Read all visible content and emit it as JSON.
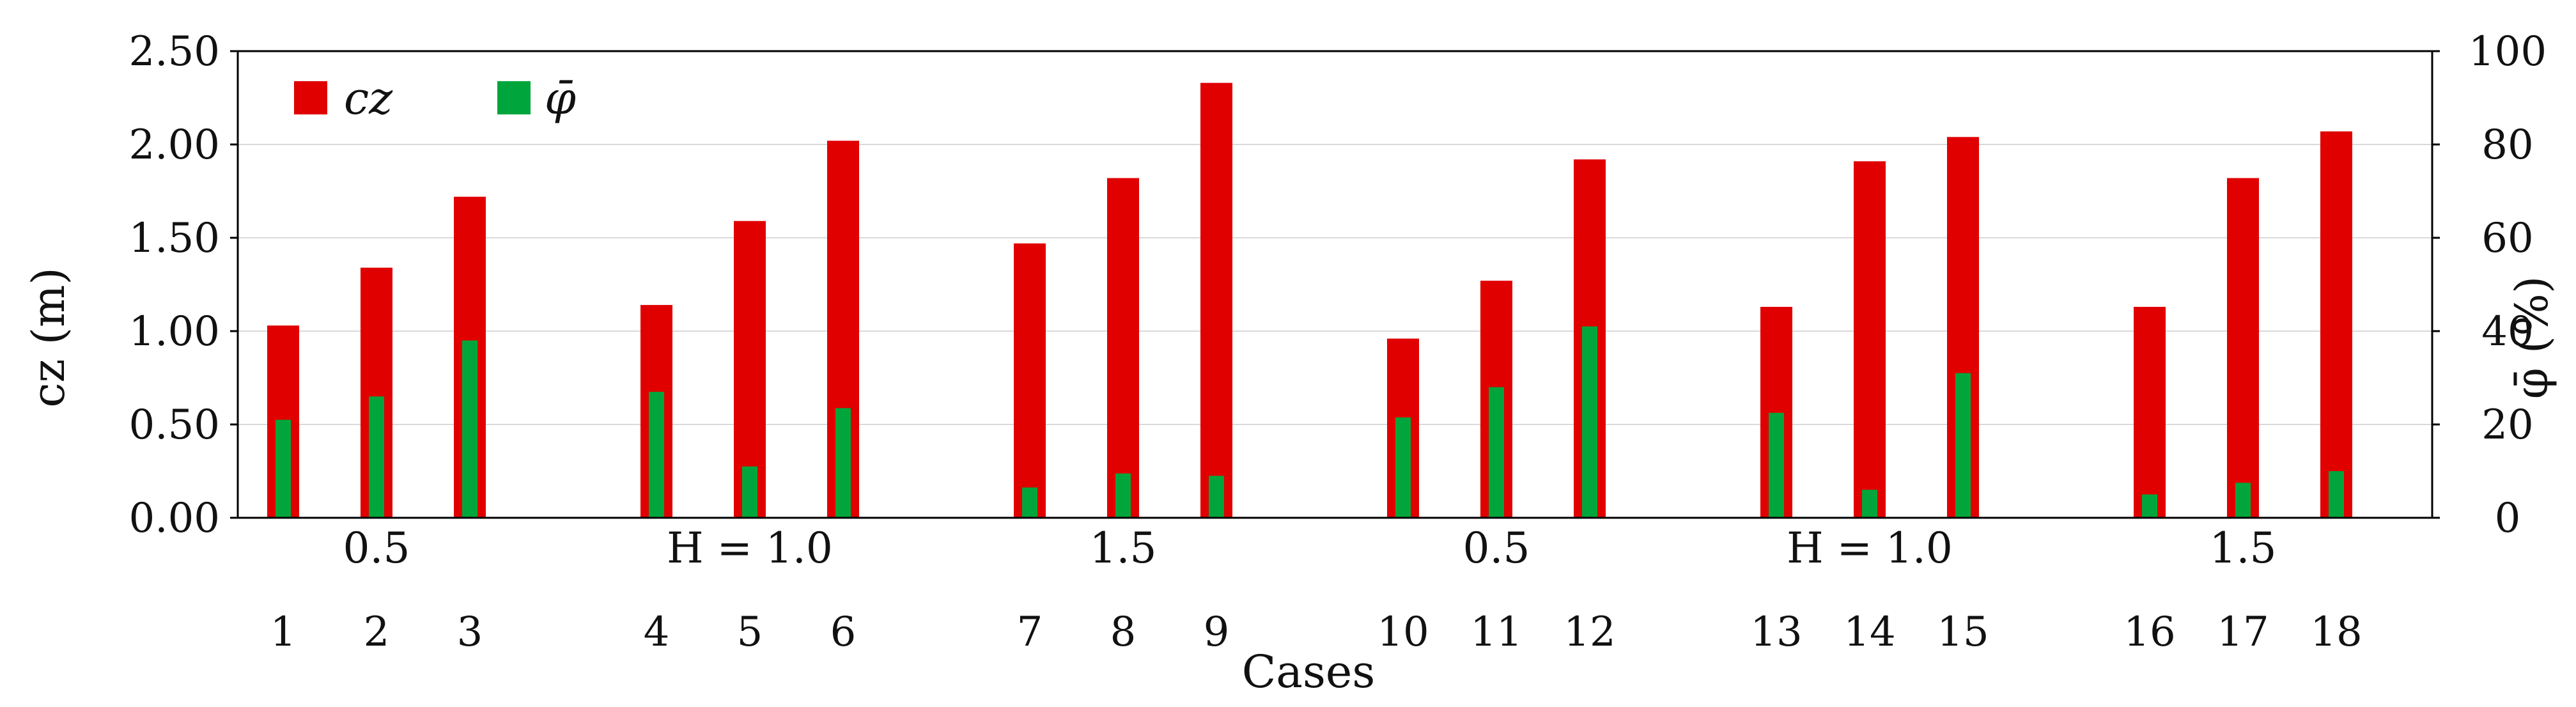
{
  "chart_data": {
    "type": "bar",
    "categories": [
      "1",
      "2",
      "3",
      "4",
      "5",
      "6",
      "7",
      "8",
      "9",
      "10",
      "11",
      "12",
      "13",
      "14",
      "15",
      "16",
      "17",
      "18"
    ],
    "series": [
      {
        "name": "cz",
        "axis": "left",
        "color": "#e00000",
        "values": [
          1.03,
          1.34,
          1.72,
          1.14,
          1.59,
          2.02,
          1.47,
          1.82,
          2.33,
          0.96,
          1.27,
          1.92,
          1.13,
          1.91,
          2.04,
          1.13,
          1.82,
          2.07
        ]
      },
      {
        "name": "φ̄",
        "axis": "right",
        "color": "#00a63c",
        "values": [
          21,
          26,
          38,
          27,
          11,
          23.5,
          6.5,
          9.5,
          9,
          21.5,
          28,
          41,
          22.5,
          6,
          31,
          5,
          7.5,
          10
        ]
      }
    ],
    "groups": [
      {
        "label": "0.5",
        "cases": [
          1,
          2,
          3
        ]
      },
      {
        "label": "H = 1.0",
        "cases": [
          4,
          5,
          6
        ]
      },
      {
        "label": "1.5",
        "cases": [
          7,
          8,
          9
        ]
      },
      {
        "label": "0.5",
        "cases": [
          10,
          11,
          12
        ]
      },
      {
        "label": "H = 1.0",
        "cases": [
          13,
          14,
          15
        ]
      },
      {
        "label": "1.5",
        "cases": [
          16,
          17,
          18
        ]
      }
    ],
    "xlabel": "Cases",
    "ylabel_left": "cz (m)",
    "ylabel_right": "φ̄ (%)",
    "ylim_left": [
      0,
      2.5
    ],
    "ylim_right": [
      0,
      100
    ],
    "yticks_left": [
      "0.00",
      "0.50",
      "1.00",
      "1.50",
      "2.00",
      "2.50"
    ],
    "yticks_right": [
      "0",
      "20",
      "40",
      "60",
      "80",
      "100"
    ],
    "grid": "horizontal",
    "legend_position": "top-left",
    "legend": [
      {
        "label": "cz",
        "color": "#e00000"
      },
      {
        "label": "φ̄",
        "color": "#00a63c"
      }
    ]
  }
}
